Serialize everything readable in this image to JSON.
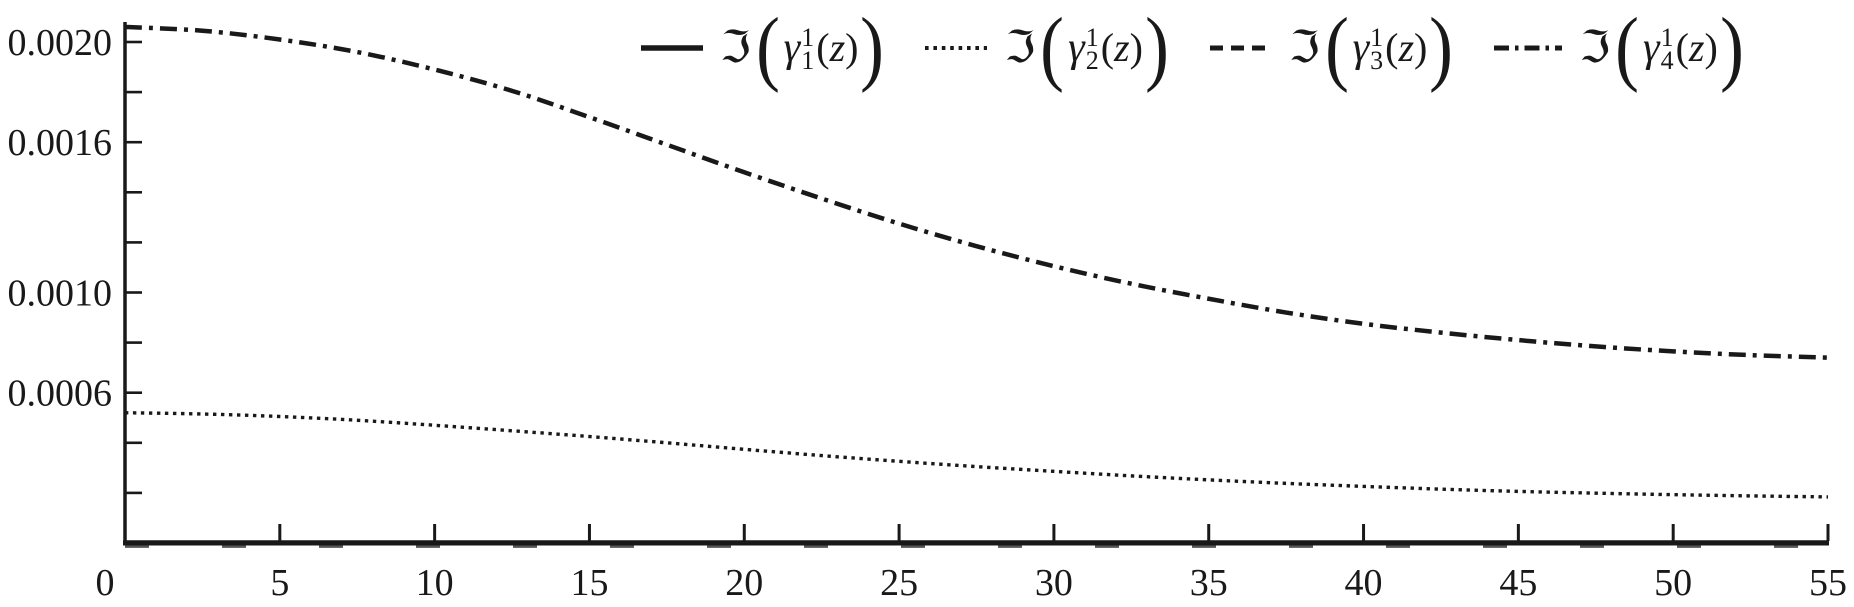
{
  "figure": {
    "background": "#ffffff",
    "ink": "#191919",
    "axis_overlay_dash_color": "#555555"
  },
  "legend": {
    "entries": [
      {
        "name": "Im(gamma_1^1(z))",
        "style": "solid",
        "dasharray": "none",
        "im": "ℑ",
        "open": "(",
        "gamma": "γ",
        "sup": "1",
        "sub": "1",
        "arg_open": "(",
        "arg_var": "z",
        "arg_close": ")",
        "close": ")"
      },
      {
        "name": "Im(gamma_2^1(z))",
        "style": "dotted",
        "dasharray": "3.6 4.8",
        "im": "ℑ",
        "open": "(",
        "gamma": "γ",
        "sup": "1",
        "sub": "2",
        "arg_open": "(",
        "arg_var": "z",
        "arg_close": ")",
        "close": ")"
      },
      {
        "name": "Im(gamma_3^1(z))",
        "style": "dashed",
        "dasharray": "13 8",
        "im": "ℑ",
        "open": "(",
        "gamma": "γ",
        "sup": "1",
        "sub": "3",
        "arg_open": "(",
        "arg_var": "z",
        "arg_close": ")",
        "close": ")"
      },
      {
        "name": "Im(gamma_4^1(z))",
        "style": "dashdot",
        "dasharray": "15 6 3.5 6",
        "im": "ℑ",
        "open": "(",
        "gamma": "γ",
        "sup": "1",
        "sub": "4",
        "arg_open": "(",
        "arg_var": "z",
        "arg_close": ")",
        "close": ")"
      }
    ]
  },
  "chart_data": {
    "type": "line",
    "title": "",
    "xlabel": "",
    "ylabel": "",
    "xlim": [
      0,
      55
    ],
    "ylim": [
      0,
      0.00212
    ],
    "grid": false,
    "legend_position": "top",
    "x_ticks": [
      {
        "v": 0,
        "label": "0",
        "dx": -20
      },
      {
        "v": 5,
        "label": "5"
      },
      {
        "v": 10,
        "label": "10"
      },
      {
        "v": 15,
        "label": "15"
      },
      {
        "v": 20,
        "label": "20"
      },
      {
        "v": 25,
        "label": "25"
      },
      {
        "v": 30,
        "label": "30"
      },
      {
        "v": 35,
        "label": "35"
      },
      {
        "v": 40,
        "label": "40"
      },
      {
        "v": 45,
        "label": "45"
      },
      {
        "v": 50,
        "label": "50"
      },
      {
        "v": 55,
        "label": "55"
      }
    ],
    "y_ticks": [
      {
        "v": 0.0002,
        "label": ""
      },
      {
        "v": 0.0004,
        "label": ""
      },
      {
        "v": 0.0006,
        "label": "0.0006"
      },
      {
        "v": 0.0008,
        "label": ""
      },
      {
        "v": 0.001,
        "label": "0.0010"
      },
      {
        "v": 0.0012,
        "label": ""
      },
      {
        "v": 0.0014,
        "label": ""
      },
      {
        "v": 0.0016,
        "label": "0.0016"
      },
      {
        "v": 0.0018,
        "label": ""
      },
      {
        "v": 0.002,
        "label": "0.0020"
      }
    ],
    "x": [
      0,
      2.5,
      5,
      7.5,
      10,
      12.5,
      15,
      17.5,
      20,
      22.5,
      25,
      27.5,
      30,
      32.5,
      35,
      37.5,
      40,
      42.5,
      45,
      47.5,
      50,
      52.5,
      55
    ],
    "series": [
      {
        "name": "Im(gamma_1^1(z))",
        "style": "solid",
        "dasharray": "none",
        "stroke_width": 3.5,
        "color": "#191919",
        "dy": -1,
        "values": [
          0,
          0,
          0,
          0,
          0,
          0,
          0,
          0,
          0,
          0,
          0,
          0,
          0,
          0,
          0,
          0,
          0,
          0,
          0,
          0,
          0,
          0,
          0
        ]
      },
      {
        "name": "Im(gamma_2^1(z))",
        "style": "dotted",
        "dasharray": "3.4 4.6",
        "stroke_width": 3.4,
        "color": "#191919",
        "dy": 0,
        "values": [
          0.00052,
          0.000515,
          0.000505,
          0.00049,
          0.00047,
          0.000448,
          0.000425,
          0.0004,
          0.000374,
          0.000349,
          0.000326,
          0.000305,
          0.000286,
          0.000268,
          0.000252,
          0.000238,
          0.000226,
          0.000215,
          0.000206,
          0.000199,
          0.000193,
          0.000188,
          0.000184
        ]
      },
      {
        "name": "Im(gamma_3^1(z))",
        "style": "dashed",
        "dasharray": "24 73",
        "stroke_width": 2.6,
        "color": "#555555",
        "dy": 3.6,
        "values": [
          0,
          0,
          0,
          0,
          0,
          0,
          0,
          0,
          0,
          0,
          0,
          0,
          0,
          0,
          0,
          0,
          0,
          0,
          0,
          0,
          0,
          0,
          0
        ]
      },
      {
        "name": "Im(gamma_4^1(z))",
        "style": "dashdot",
        "dasharray": "17 7 4 7",
        "stroke_width": 4.5,
        "color": "#191919",
        "dy": 0,
        "values": [
          0.00206,
          0.002045,
          0.00201,
          0.00196,
          0.00189,
          0.001805,
          0.0017,
          0.00159,
          0.00148,
          0.001375,
          0.001275,
          0.001185,
          0.001105,
          0.001035,
          0.000975,
          0.00092,
          0.000875,
          0.00084,
          0.00081,
          0.000785,
          0.000765,
          0.00075,
          0.00074
        ]
      }
    ]
  }
}
